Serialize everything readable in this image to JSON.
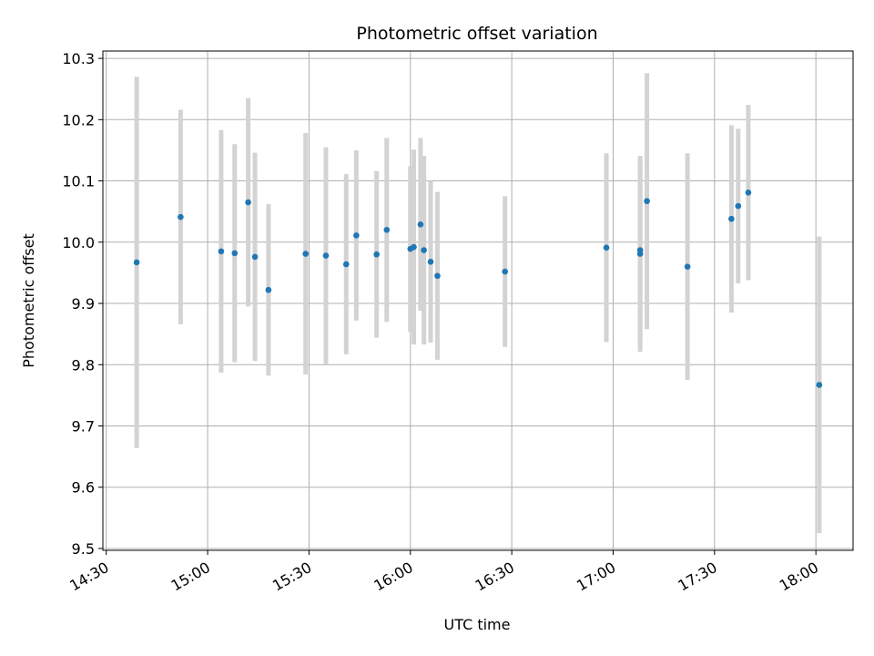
{
  "chart_data": {
    "type": "scatter",
    "title": "Photometric offset variation",
    "xlabel": "UTC time",
    "ylabel": "Photometric offset",
    "x_ticks": [
      "14:30",
      "15:00",
      "15:30",
      "16:00",
      "16:30",
      "17:00",
      "17:30",
      "18:00"
    ],
    "y_ticks": [
      "9.5",
      "9.6",
      "9.7",
      "9.8",
      "9.9",
      "10.0",
      "10.1",
      "10.2",
      "10.3"
    ],
    "xlim": [
      "14:29",
      "18:11"
    ],
    "ylim": [
      9.497,
      10.312
    ],
    "grid": true,
    "colors": {
      "point": "#1f77b4",
      "errorbar": "#d3d3d3",
      "grid": "#b0b0b0"
    },
    "points": [
      {
        "x": "14:39",
        "y": 9.967,
        "err": 0.303
      },
      {
        "x": "14:52",
        "y": 10.041,
        "err": 0.175
      },
      {
        "x": "15:04",
        "y": 9.985,
        "err": 0.198
      },
      {
        "x": "15:08",
        "y": 9.982,
        "err": 0.178
      },
      {
        "x": "15:12",
        "y": 10.065,
        "err": 0.17
      },
      {
        "x": "15:14",
        "y": 9.976,
        "err": 0.17
      },
      {
        "x": "15:18",
        "y": 9.922,
        "err": 0.14
      },
      {
        "x": "15:29",
        "y": 9.981,
        "err": 0.197
      },
      {
        "x": "15:35",
        "y": 9.978,
        "err": 0.177
      },
      {
        "x": "15:41",
        "y": 9.964,
        "err": 0.147
      },
      {
        "x": "15:44",
        "y": 10.011,
        "err": 0.139
      },
      {
        "x": "15:50",
        "y": 9.98,
        "err": 0.136
      },
      {
        "x": "15:53",
        "y": 10.02,
        "err": 0.15
      },
      {
        "x": "16:00",
        "y": 9.989,
        "err": 0.135
      },
      {
        "x": "16:01",
        "y": 9.992,
        "err": 0.159
      },
      {
        "x": "16:03",
        "y": 10.029,
        "err": 0.141
      },
      {
        "x": "16:04",
        "y": 9.987,
        "err": 0.154
      },
      {
        "x": "16:06",
        "y": 9.968,
        "err": 0.132
      },
      {
        "x": "16:08",
        "y": 9.945,
        "err": 0.137
      },
      {
        "x": "16:28",
        "y": 9.952,
        "err": 0.123
      },
      {
        "x": "16:58",
        "y": 9.991,
        "err": 0.154
      },
      {
        "x": "17:08",
        "y": 9.987,
        "err": 0.146
      },
      {
        "x": "17:08",
        "y": 9.981,
        "err": 0.16
      },
      {
        "x": "17:10",
        "y": 10.067,
        "err": 0.209
      },
      {
        "x": "17:22",
        "y": 9.96,
        "err": 0.185
      },
      {
        "x": "17:35",
        "y": 10.038,
        "err": 0.153
      },
      {
        "x": "17:37",
        "y": 10.059,
        "err": 0.126
      },
      {
        "x": "17:40",
        "y": 10.081,
        "err": 0.143
      },
      {
        "x": "18:01",
        "y": 9.767,
        "err": 0.242
      }
    ]
  }
}
